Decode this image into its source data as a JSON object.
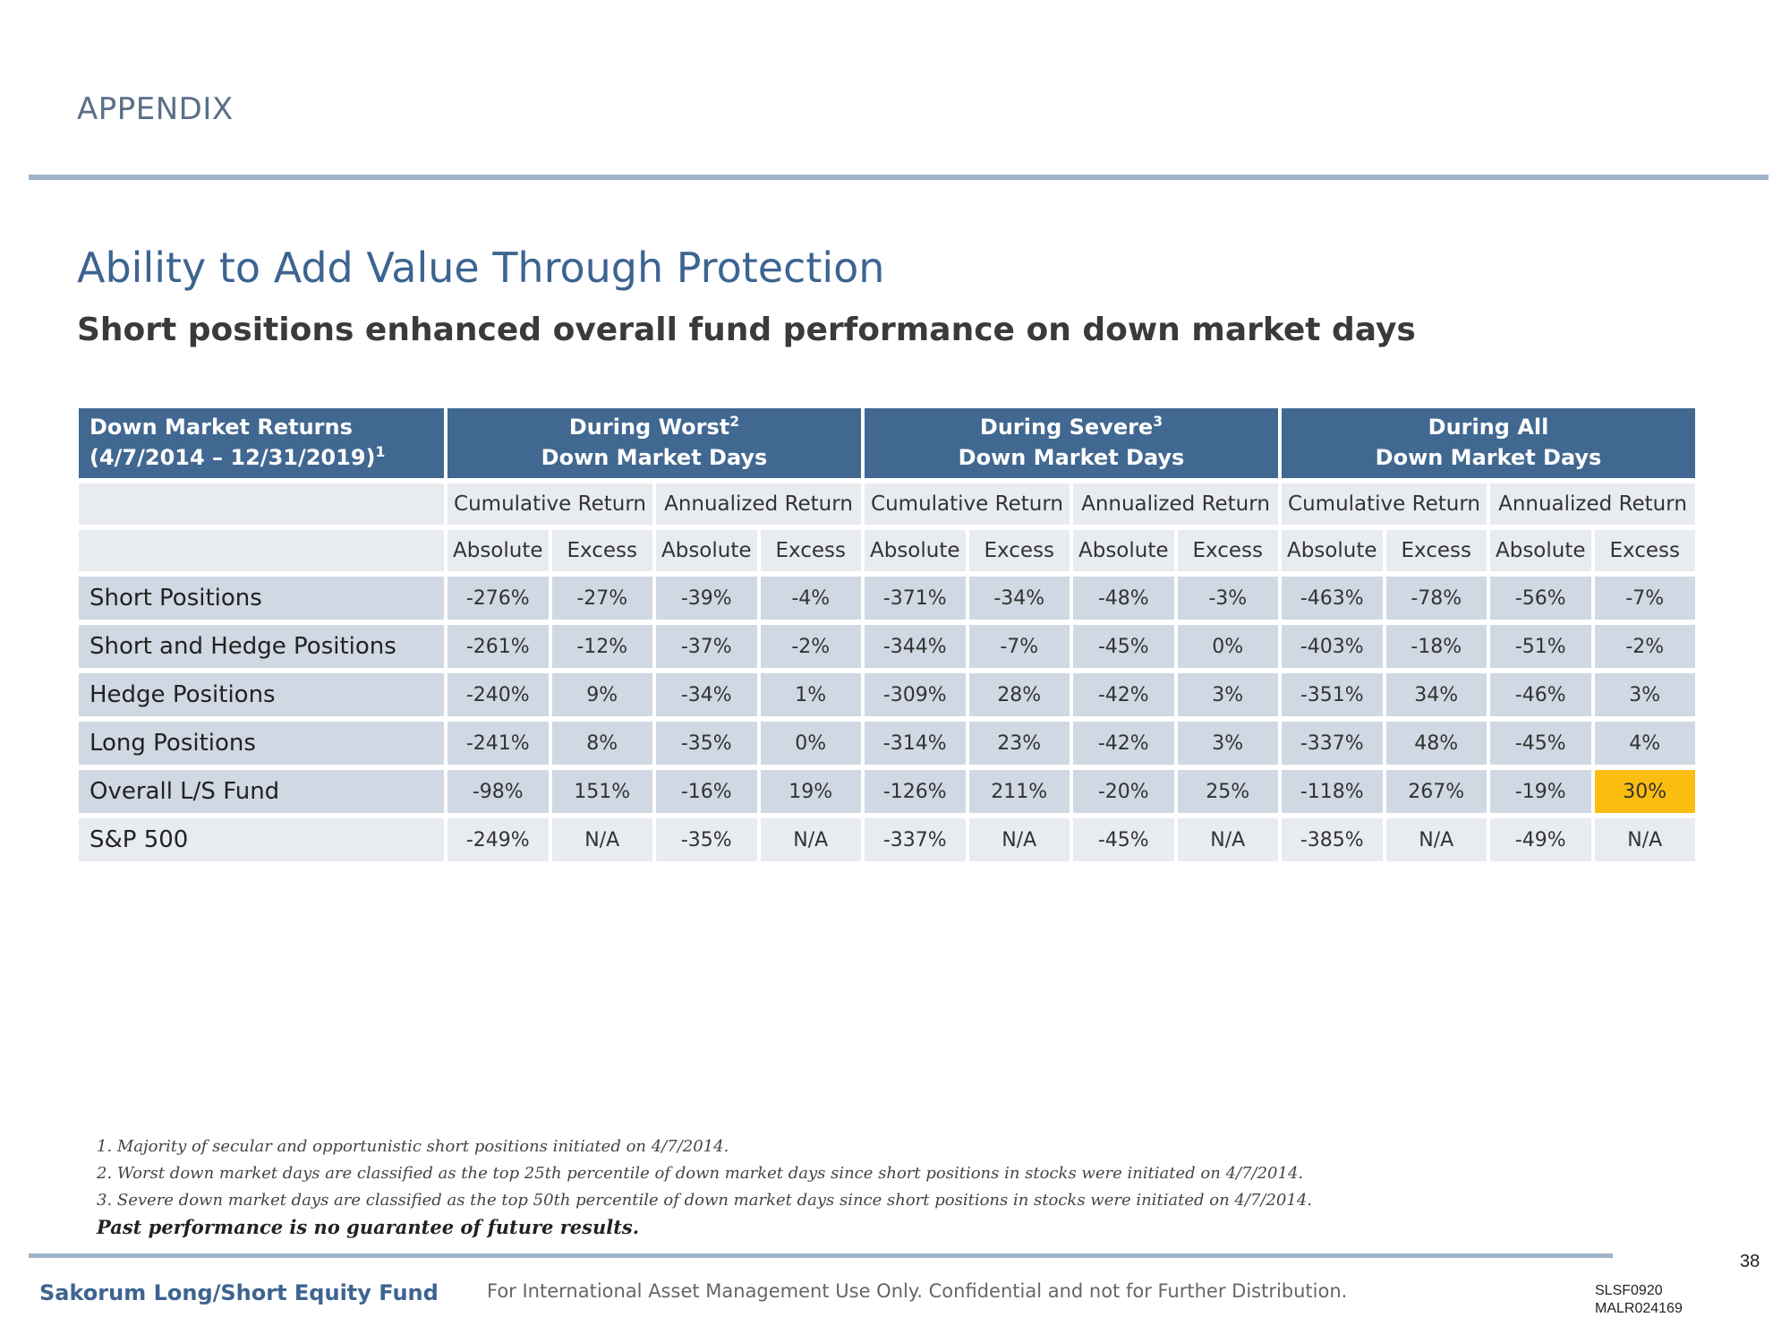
{
  "header": {
    "section": "APPENDIX"
  },
  "title": "Ability to Add Value Through Protection",
  "subtitle": "Short positions enhanced overall fund performance on down market days",
  "table": {
    "header": {
      "first_line1": "Down Market Returns",
      "first_line2": "(4/7/2014 – 12/31/2019)",
      "first_sup": "1",
      "groups": [
        {
          "line1": "During Worst",
          "sup": "2",
          "line2": "Down Market Days"
        },
        {
          "line1": "During Severe",
          "sup": "3",
          "line2": "Down Market Days"
        },
        {
          "line1": "During All",
          "sup": "",
          "line2": "Down Market Days"
        }
      ]
    },
    "return_types": [
      "Cumulative Return",
      "Annualized Return",
      "Cumulative Return",
      "Annualized Return",
      "Cumulative Return",
      "Annualized Return"
    ],
    "measures": [
      "Absolute",
      "Excess",
      "Absolute",
      "Excess",
      "Absolute",
      "Excess",
      "Absolute",
      "Excess",
      "Absolute",
      "Excess",
      "Absolute",
      "Excess"
    ],
    "rows": [
      {
        "label": "Short Positions",
        "values": [
          "-276%",
          "-27%",
          "-39%",
          "-4%",
          "-371%",
          "-34%",
          "-48%",
          "-3%",
          "-463%",
          "-78%",
          "-56%",
          "-7%"
        ]
      },
      {
        "label": "Short and Hedge Positions",
        "values": [
          "-261%",
          "-12%",
          "-37%",
          "-2%",
          "-344%",
          "-7%",
          "-45%",
          "0%",
          "-403%",
          "-18%",
          "-51%",
          "-2%"
        ]
      },
      {
        "label": "Hedge Positions",
        "values": [
          "-240%",
          "9%",
          "-34%",
          "1%",
          "-309%",
          "28%",
          "-42%",
          "3%",
          "-351%",
          "34%",
          "-46%",
          "3%"
        ]
      },
      {
        "label": "Long Positions",
        "values": [
          "-241%",
          "8%",
          "-35%",
          "0%",
          "-314%",
          "23%",
          "-42%",
          "3%",
          "-337%",
          "48%",
          "-45%",
          "4%"
        ]
      },
      {
        "label": "Overall L/S Fund",
        "values": [
          "-98%",
          "151%",
          "-16%",
          "19%",
          "-126%",
          "211%",
          "-20%",
          "25%",
          "-118%",
          "267%",
          "-19%",
          "30%"
        ]
      },
      {
        "label": "S&P 500",
        "values": [
          "-249%",
          "N/A",
          "-35%",
          "N/A",
          "-337%",
          "N/A",
          "-45%",
          "N/A",
          "-385%",
          "N/A",
          "-49%",
          "N/A"
        ]
      }
    ],
    "highlight_color": "#fbbd10"
  },
  "footnotes": [
    "1. Majority of secular and opportunistic short positions initiated on 4/7/2014.",
    "2. Worst down market days are classified as the top 25th percentile of down market days since short positions in stocks were initiated on 4/7/2014.",
    "3. Severe down market days are classified as the top 50th percentile of down market days since short positions in stocks were initiated on 4/7/2014."
  ],
  "disclaimer": "Past performance is no guarantee of future results.",
  "footer": {
    "fund_name": "Sakorum Long/Short Equity Fund",
    "confidential": "For International Asset Management Use Only. Confidential and not for Further Distribution.",
    "page_number": "38",
    "code1": "SLSF0920",
    "code2": "MALR024169"
  },
  "colors": {
    "header_blue": "#416891",
    "title_blue": "#3d6491",
    "accent_gold": "#e6bb4f",
    "row_blue": "#cfd8e3",
    "row_gray": "#e8ebef"
  }
}
